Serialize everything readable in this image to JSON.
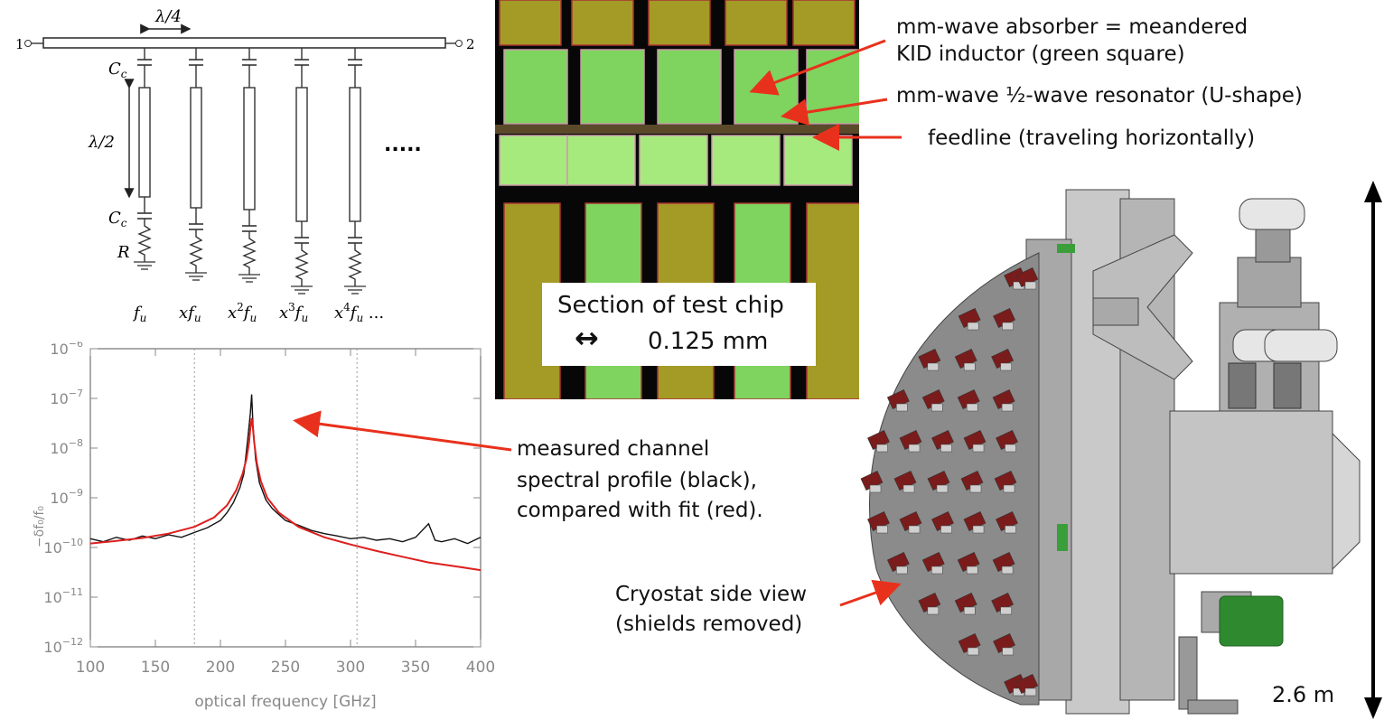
{
  "circuit": {
    "port_in": "1",
    "port_out": "2",
    "quarter_wave": "λ/4",
    "half_wave": "λ/2",
    "coupling_cap": "C",
    "coupling_cap_sub": "c",
    "resistor": "R",
    "ellipsis": ".....",
    "channel_freqs": [
      {
        "pre": "",
        "exp": "",
        "tail": ""
      },
      {
        "pre": "x",
        "exp": "",
        "tail": ""
      },
      {
        "pre": "x",
        "exp": "2",
        "tail": ""
      },
      {
        "pre": "x",
        "exp": "3",
        "tail": ""
      },
      {
        "pre": "x",
        "exp": "4",
        "tail": " ..."
      }
    ],
    "freq_symbol": "f",
    "freq_sub": "u"
  },
  "chip": {
    "caption": "Section of test chip",
    "scale_arrow": "↔",
    "scale": "0.125 mm",
    "colors": {
      "green": "#7fd35f",
      "bright_green": "#a6ea7e",
      "olive": "#a49a26",
      "black": "#050505"
    }
  },
  "annotations": {
    "absorber_line1": "mm-wave absorber = meandered",
    "absorber_line2": "KID inductor (green square)",
    "resonator": "mm-wave ½-wave resonator (U-shape)",
    "feedline": "feedline  (traveling horizontally)",
    "measured_line1": "measured channel",
    "measured_line2": "spectral profile (black),",
    "measured_line3": "compared with fit (red).",
    "cryostat_line1": "Cryostat side view",
    "cryostat_line2": "(shields removed)",
    "height": "2.6 m",
    "arrow_color": "#e8311c"
  },
  "chart_data": {
    "type": "line",
    "title": "",
    "xlabel": "optical frequency [GHz]",
    "ylabel": "−δf₀/f₀",
    "yscale": "log",
    "xlim": [
      100,
      400
    ],
    "ylim": [
      1e-12,
      1e-06
    ],
    "x_ticks": [
      "100",
      "150",
      "200",
      "250",
      "300",
      "350",
      "400"
    ],
    "x_tick_values": [
      100,
      150,
      200,
      250,
      300,
      350,
      400
    ],
    "y_ticks": [
      {
        "base": "10",
        "exp": "−6",
        "value": 1e-06
      },
      {
        "base": "10",
        "exp": "−7",
        "value": 1e-07
      },
      {
        "base": "10",
        "exp": "−8",
        "value": 1e-08
      },
      {
        "base": "10",
        "exp": "−9",
        "value": 1e-09
      },
      {
        "base": "10",
        "exp": "−10",
        "value": 1e-10
      },
      {
        "base": "10",
        "exp": "−11",
        "value": 1e-11
      },
      {
        "base": "10",
        "exp": "−12",
        "value": 1e-12
      }
    ],
    "vlines": [
      180,
      305
    ],
    "series": [
      {
        "name": "measured",
        "color": "#111111",
        "x": [
          100,
          110,
          120,
          130,
          140,
          150,
          160,
          170,
          180,
          190,
          200,
          205,
          210,
          215,
          218,
          221,
          223,
          224,
          225,
          227,
          230,
          235,
          240,
          250,
          260,
          270,
          280,
          290,
          300,
          310,
          320,
          330,
          340,
          350,
          360,
          365,
          370,
          380,
          390,
          400
        ],
        "y": [
          1.5e-10,
          1.3e-10,
          1.6e-10,
          1.4e-10,
          1.7e-10,
          1.5e-10,
          1.8e-10,
          1.6e-10,
          2e-10,
          2.5e-10,
          3.5e-10,
          5e-10,
          8e-10,
          1.6e-09,
          3e-09,
          1.5e-08,
          5e-08,
          1.2e-07,
          3e-08,
          6e-09,
          2e-09,
          9e-10,
          6e-10,
          3.5e-10,
          2.8e-10,
          2.2e-10,
          1.9e-10,
          1.7e-10,
          1.5e-10,
          1.6e-10,
          1.4e-10,
          1.5e-10,
          1.3e-10,
          1.6e-10,
          3e-10,
          1.4e-10,
          1.3e-10,
          1.5e-10,
          1.2e-10,
          1.6e-10
        ]
      },
      {
        "name": "fit",
        "color": "#dd1f1f",
        "x": [
          100,
          120,
          140,
          160,
          180,
          195,
          205,
          212,
          217,
          220,
          222,
          223,
          224,
          225,
          226,
          228,
          231,
          236,
          245,
          260,
          280,
          300,
          320,
          340,
          360,
          380,
          400
        ],
        "y": [
          1.2e-10,
          1.35e-10,
          1.55e-10,
          1.9e-10,
          2.6e-10,
          4e-10,
          7e-10,
          1.4e-09,
          3e-09,
          6e-09,
          1.3e-08,
          2.5e-08,
          4e-08,
          2.5e-08,
          1.3e-08,
          5e-09,
          2.2e-09,
          1e-09,
          5e-10,
          2.6e-10,
          1.6e-10,
          1.15e-10,
          8.5e-11,
          6.5e-11,
          5e-11,
          4.2e-11,
          3.5e-11
        ]
      }
    ]
  }
}
